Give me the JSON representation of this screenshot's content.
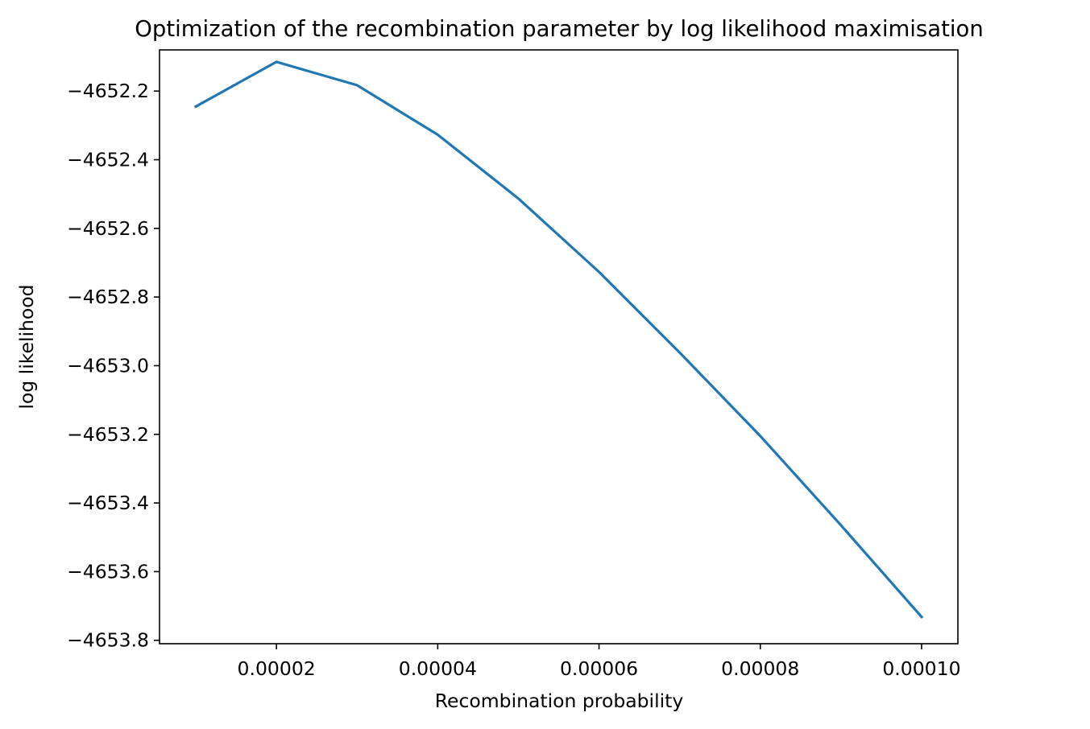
{
  "chart_data": {
    "type": "line",
    "title": "Optimization of the recombination parameter by log likelihood maximisation",
    "xlabel": "Recombination probability",
    "ylabel": "log likelihood",
    "xlim": [
      5.5e-06,
      0.0001045
    ],
    "ylim": [
      -4653.81,
      -4652.08
    ],
    "xticks": [
      2e-05,
      4e-05,
      6e-05,
      8e-05,
      0.0001
    ],
    "xtick_labels": [
      "0.00002",
      "0.00004",
      "0.00006",
      "0.00008",
      "0.00010"
    ],
    "yticks": [
      -4652.2,
      -4652.4,
      -4652.6,
      -4652.8,
      -4653.0,
      -4653.2,
      -4653.4,
      -4653.6,
      -4653.8
    ],
    "ytick_labels": [
      "−4652.2",
      "−4652.4",
      "−4652.6",
      "−4652.8",
      "−4653.0",
      "−4653.2",
      "−4653.4",
      "−4653.6",
      "−4653.8"
    ],
    "grid": false,
    "series": [
      {
        "color": "#1f77b4",
        "x": [
          1e-05,
          2e-05,
          3e-05,
          4e-05,
          5e-05,
          6e-05,
          7e-05,
          8e-05,
          9e-05,
          0.0001
        ],
        "y": [
          -4652.245,
          -4652.115,
          -4652.183,
          -4652.327,
          -4652.513,
          -4652.727,
          -4652.962,
          -4653.205,
          -4653.465,
          -4653.732
        ]
      }
    ]
  }
}
